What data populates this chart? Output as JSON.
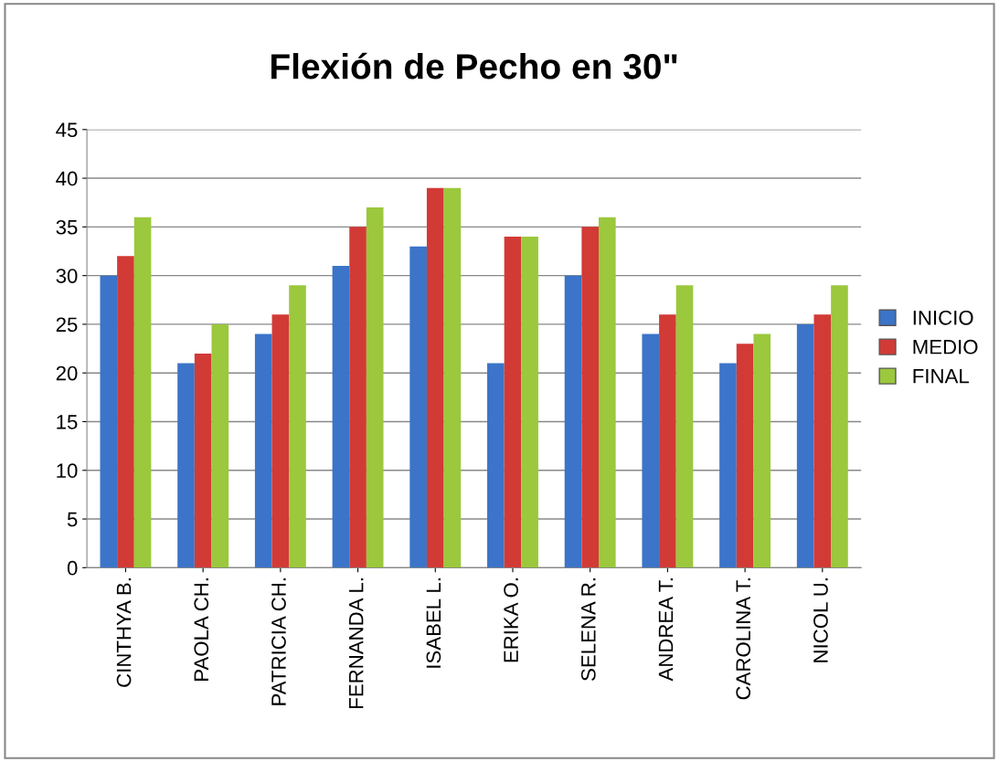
{
  "chart_data": {
    "type": "bar",
    "title": "Flexión de Pecho en 30\"",
    "categories": [
      "CINTHYA B.",
      "PAOLA CH.",
      "PATRICIA CH.",
      "FERNANDA L.",
      "ISABEL L.",
      "ERIKA O.",
      "SELENA R.",
      "ANDREA T.",
      "CAROLINA T.",
      "NICOL U."
    ],
    "series": [
      {
        "name": "INICIO",
        "color": "#3b74c8",
        "values": [
          30,
          21,
          24,
          31,
          33,
          21,
          30,
          24,
          21,
          25
        ]
      },
      {
        "name": "MEDIO",
        "color": "#d23a36",
        "values": [
          32,
          22,
          26,
          35,
          39,
          34,
          35,
          26,
          23,
          26
        ]
      },
      {
        "name": "FINAL",
        "color": "#9bc83c",
        "values": [
          36,
          25,
          29,
          37,
          39,
          34,
          36,
          29,
          24,
          29
        ]
      }
    ],
    "ylim": [
      0,
      45
    ],
    "yticks": [
      0,
      5,
      10,
      15,
      20,
      25,
      30,
      35,
      40,
      45
    ],
    "grid": "y",
    "legend": "right"
  }
}
